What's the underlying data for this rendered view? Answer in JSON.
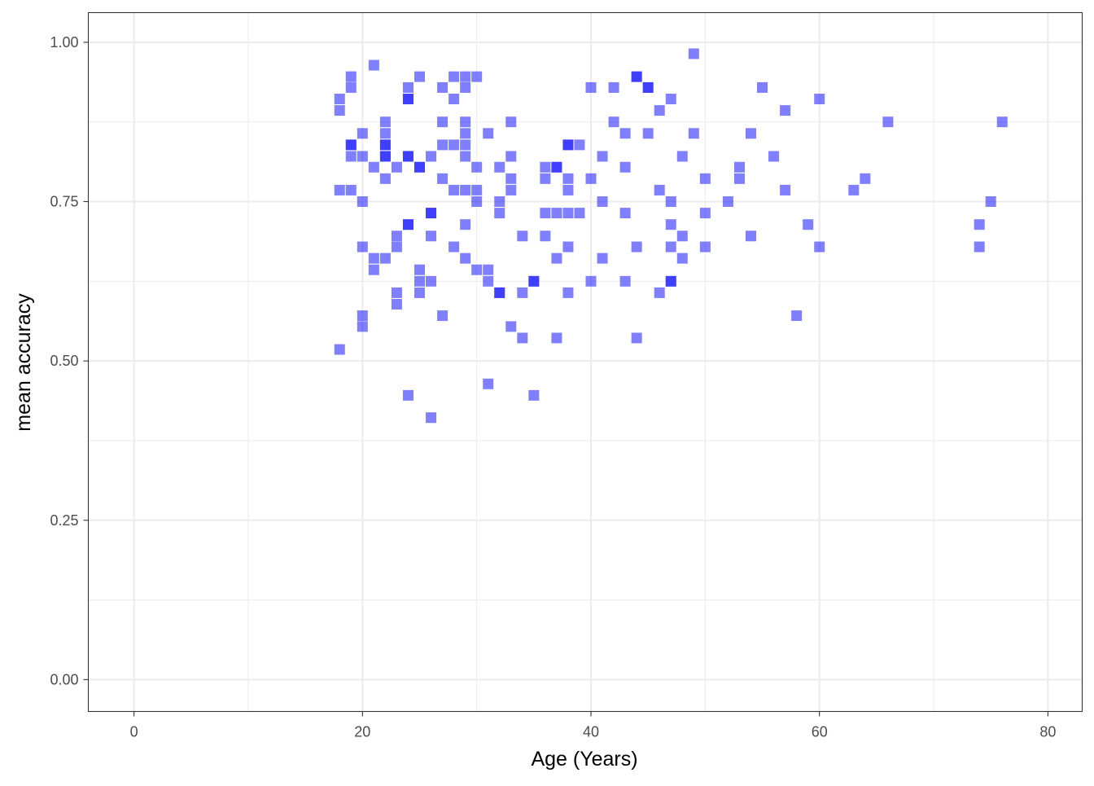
{
  "chart_data": {
    "type": "scatter",
    "title": "",
    "xlabel": "Age (Years)",
    "ylabel": "mean accuracy",
    "xlim": [
      -4,
      83
    ],
    "ylim": [
      -0.05,
      1.0465
    ],
    "x_ticks": [
      0,
      20,
      40,
      60,
      80
    ],
    "x_tick_labels": [
      "0",
      "20",
      "40",
      "60",
      "80"
    ],
    "y_ticks": [
      0,
      0.25,
      0.5,
      0.75,
      1.0
    ],
    "y_tick_labels": [
      "0.00",
      "0.25",
      "0.50",
      "0.75",
      "1.00"
    ],
    "x_minor": [
      10,
      30,
      50,
      70
    ],
    "y_minor": [
      0.125,
      0.375,
      0.625,
      0.875
    ],
    "grid": true,
    "legend": "none",
    "marker": "square",
    "point_color": "#0000ff",
    "point_opacity": 0.5,
    "grid_color": "#ebebeb",
    "panel_border_color": "#333333",
    "points": [
      {
        "x": 18,
        "y": 0.911
      },
      {
        "x": 18,
        "y": 0.893
      },
      {
        "x": 18,
        "y": 0.768
      },
      {
        "x": 18,
        "y": 0.518
      },
      {
        "x": 19,
        "y": 0.946
      },
      {
        "x": 19,
        "y": 0.929
      },
      {
        "x": 19,
        "y": 0.839
      },
      {
        "x": 19,
        "y": 0.839
      },
      {
        "x": 19,
        "y": 0.821
      },
      {
        "x": 19,
        "y": 0.768
      },
      {
        "x": 20,
        "y": 0.857
      },
      {
        "x": 20,
        "y": 0.821
      },
      {
        "x": 20,
        "y": 0.75
      },
      {
        "x": 20,
        "y": 0.679
      },
      {
        "x": 20,
        "y": 0.571
      },
      {
        "x": 20,
        "y": 0.554
      },
      {
        "x": 21,
        "y": 0.964
      },
      {
        "x": 21,
        "y": 0.804
      },
      {
        "x": 21,
        "y": 0.661
      },
      {
        "x": 21,
        "y": 0.643
      },
      {
        "x": 22,
        "y": 0.875
      },
      {
        "x": 22,
        "y": 0.857
      },
      {
        "x": 22,
        "y": 0.839
      },
      {
        "x": 22,
        "y": 0.839
      },
      {
        "x": 22,
        "y": 0.821
      },
      {
        "x": 22,
        "y": 0.821
      },
      {
        "x": 22,
        "y": 0.786
      },
      {
        "x": 22,
        "y": 0.661
      },
      {
        "x": 23,
        "y": 0.804
      },
      {
        "x": 23,
        "y": 0.696
      },
      {
        "x": 23,
        "y": 0.679
      },
      {
        "x": 23,
        "y": 0.607
      },
      {
        "x": 23,
        "y": 0.589
      },
      {
        "x": 24,
        "y": 0.929
      },
      {
        "x": 24,
        "y": 0.911
      },
      {
        "x": 24,
        "y": 0.911
      },
      {
        "x": 24,
        "y": 0.821
      },
      {
        "x": 24,
        "y": 0.821
      },
      {
        "x": 24,
        "y": 0.714
      },
      {
        "x": 24,
        "y": 0.714
      },
      {
        "x": 24,
        "y": 0.446
      },
      {
        "x": 25,
        "y": 0.946
      },
      {
        "x": 25,
        "y": 0.804
      },
      {
        "x": 25,
        "y": 0.804
      },
      {
        "x": 25,
        "y": 0.643
      },
      {
        "x": 25,
        "y": 0.625
      },
      {
        "x": 25,
        "y": 0.607
      },
      {
        "x": 26,
        "y": 0.821
      },
      {
        "x": 26,
        "y": 0.732
      },
      {
        "x": 26,
        "y": 0.732
      },
      {
        "x": 26,
        "y": 0.696
      },
      {
        "x": 26,
        "y": 0.625
      },
      {
        "x": 26,
        "y": 0.411
      },
      {
        "x": 27,
        "y": 0.929
      },
      {
        "x": 27,
        "y": 0.875
      },
      {
        "x": 27,
        "y": 0.839
      },
      {
        "x": 27,
        "y": 0.786
      },
      {
        "x": 27,
        "y": 0.571
      },
      {
        "x": 28,
        "y": 0.946
      },
      {
        "x": 28,
        "y": 0.911
      },
      {
        "x": 28,
        "y": 0.839
      },
      {
        "x": 28,
        "y": 0.768
      },
      {
        "x": 28,
        "y": 0.679
      },
      {
        "x": 29,
        "y": 0.946
      },
      {
        "x": 29,
        "y": 0.929
      },
      {
        "x": 29,
        "y": 0.875
      },
      {
        "x": 29,
        "y": 0.857
      },
      {
        "x": 29,
        "y": 0.839
      },
      {
        "x": 29,
        "y": 0.821
      },
      {
        "x": 29,
        "y": 0.768
      },
      {
        "x": 29,
        "y": 0.714
      },
      {
        "x": 29,
        "y": 0.661
      },
      {
        "x": 30,
        "y": 0.946
      },
      {
        "x": 30,
        "y": 0.804
      },
      {
        "x": 30,
        "y": 0.768
      },
      {
        "x": 30,
        "y": 0.75
      },
      {
        "x": 30,
        "y": 0.643
      },
      {
        "x": 31,
        "y": 0.857
      },
      {
        "x": 31,
        "y": 0.643
      },
      {
        "x": 31,
        "y": 0.625
      },
      {
        "x": 31,
        "y": 0.464
      },
      {
        "x": 32,
        "y": 0.804
      },
      {
        "x": 32,
        "y": 0.75
      },
      {
        "x": 32,
        "y": 0.732
      },
      {
        "x": 32,
        "y": 0.607
      },
      {
        "x": 32,
        "y": 0.607
      },
      {
        "x": 33,
        "y": 0.875
      },
      {
        "x": 33,
        "y": 0.821
      },
      {
        "x": 33,
        "y": 0.786
      },
      {
        "x": 33,
        "y": 0.768
      },
      {
        "x": 33,
        "y": 0.554
      },
      {
        "x": 34,
        "y": 0.696
      },
      {
        "x": 34,
        "y": 0.607
      },
      {
        "x": 34,
        "y": 0.536
      },
      {
        "x": 35,
        "y": 0.625
      },
      {
        "x": 35,
        "y": 0.625
      },
      {
        "x": 35,
        "y": 0.446
      },
      {
        "x": 36,
        "y": 0.804
      },
      {
        "x": 36,
        "y": 0.786
      },
      {
        "x": 36,
        "y": 0.732
      },
      {
        "x": 36,
        "y": 0.696
      },
      {
        "x": 37,
        "y": 0.804
      },
      {
        "x": 37,
        "y": 0.804
      },
      {
        "x": 37,
        "y": 0.732
      },
      {
        "x": 37,
        "y": 0.661
      },
      {
        "x": 37,
        "y": 0.536
      },
      {
        "x": 38,
        "y": 0.839
      },
      {
        "x": 38,
        "y": 0.839
      },
      {
        "x": 38,
        "y": 0.786
      },
      {
        "x": 38,
        "y": 0.768
      },
      {
        "x": 38,
        "y": 0.732
      },
      {
        "x": 38,
        "y": 0.679
      },
      {
        "x": 38,
        "y": 0.607
      },
      {
        "x": 39,
        "y": 0.839
      },
      {
        "x": 39,
        "y": 0.732
      },
      {
        "x": 40,
        "y": 0.929
      },
      {
        "x": 40,
        "y": 0.786
      },
      {
        "x": 40,
        "y": 0.625
      },
      {
        "x": 41,
        "y": 0.821
      },
      {
        "x": 41,
        "y": 0.75
      },
      {
        "x": 41,
        "y": 0.661
      },
      {
        "x": 42,
        "y": 0.929
      },
      {
        "x": 42,
        "y": 0.875
      },
      {
        "x": 43,
        "y": 0.857
      },
      {
        "x": 43,
        "y": 0.804
      },
      {
        "x": 43,
        "y": 0.732
      },
      {
        "x": 43,
        "y": 0.625
      },
      {
        "x": 44,
        "y": 0.946
      },
      {
        "x": 44,
        "y": 0.946
      },
      {
        "x": 44,
        "y": 0.679
      },
      {
        "x": 44,
        "y": 0.536
      },
      {
        "x": 45,
        "y": 0.929
      },
      {
        "x": 45,
        "y": 0.929
      },
      {
        "x": 45,
        "y": 0.857
      },
      {
        "x": 46,
        "y": 0.893
      },
      {
        "x": 46,
        "y": 0.768
      },
      {
        "x": 46,
        "y": 0.607
      },
      {
        "x": 47,
        "y": 0.911
      },
      {
        "x": 47,
        "y": 0.75
      },
      {
        "x": 47,
        "y": 0.714
      },
      {
        "x": 47,
        "y": 0.679
      },
      {
        "x": 47,
        "y": 0.625
      },
      {
        "x": 47,
        "y": 0.625
      },
      {
        "x": 48,
        "y": 0.821
      },
      {
        "x": 48,
        "y": 0.696
      },
      {
        "x": 48,
        "y": 0.661
      },
      {
        "x": 49,
        "y": 0.982
      },
      {
        "x": 49,
        "y": 0.857
      },
      {
        "x": 50,
        "y": 0.786
      },
      {
        "x": 50,
        "y": 0.732
      },
      {
        "x": 50,
        "y": 0.679
      },
      {
        "x": 52,
        "y": 0.75
      },
      {
        "x": 53,
        "y": 0.804
      },
      {
        "x": 53,
        "y": 0.786
      },
      {
        "x": 54,
        "y": 0.857
      },
      {
        "x": 54,
        "y": 0.696
      },
      {
        "x": 55,
        "y": 0.929
      },
      {
        "x": 56,
        "y": 0.821
      },
      {
        "x": 57,
        "y": 0.893
      },
      {
        "x": 57,
        "y": 0.768
      },
      {
        "x": 58,
        "y": 0.571
      },
      {
        "x": 59,
        "y": 0.714
      },
      {
        "x": 60,
        "y": 0.911
      },
      {
        "x": 60,
        "y": 0.679
      },
      {
        "x": 63,
        "y": 0.768
      },
      {
        "x": 64,
        "y": 0.786
      },
      {
        "x": 66,
        "y": 0.875
      },
      {
        "x": 74,
        "y": 0.714
      },
      {
        "x": 74,
        "y": 0.679
      },
      {
        "x": 75,
        "y": 0.75
      },
      {
        "x": 76,
        "y": 0.875
      }
    ]
  }
}
